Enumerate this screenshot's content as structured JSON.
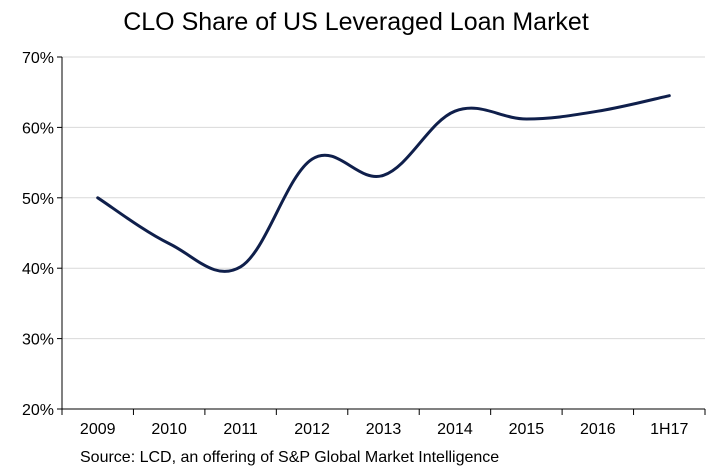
{
  "chart_data": {
    "type": "line",
    "title": "CLO Share of US Leveraged Loan Market",
    "categories": [
      "2009",
      "2010",
      "2011",
      "2012",
      "2013",
      "2014",
      "2015",
      "2016",
      "1H17"
    ],
    "series": [
      {
        "values": [
          50,
          43.5,
          40.2,
          55.5,
          53.2,
          62.3,
          61.2,
          62.3,
          64.5
        ]
      }
    ],
    "ylim": [
      20,
      70
    ],
    "yticks": [
      "20%",
      "30%",
      "40%",
      "50%",
      "60%",
      "70%"
    ],
    "ytick_values": [
      20,
      30,
      40,
      50,
      60,
      70
    ],
    "grid": true,
    "legend": "none",
    "line_color": "#0f1f4b",
    "grid_color": "#d9d9d9",
    "source": "Source: LCD, an offering of S&P Global Market Intelligence"
  }
}
